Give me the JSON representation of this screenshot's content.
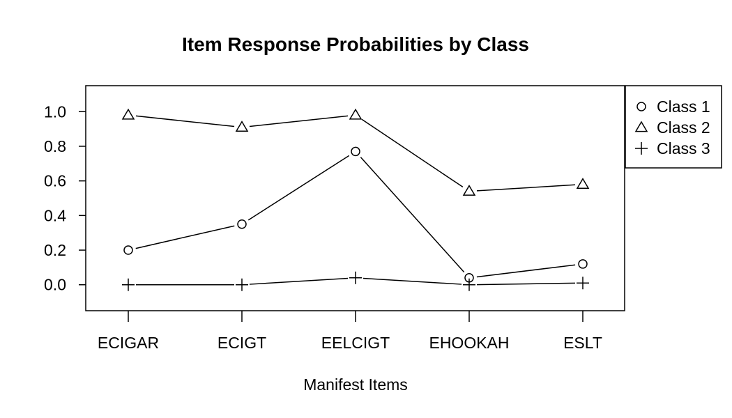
{
  "chart_data": {
    "type": "line",
    "title": "Item Response Probabilities by Class",
    "xlabel": "Manifest Items",
    "ylabel": "",
    "categories": [
      "ECIGAR",
      "ECIGT",
      "EELCIGT",
      "EHOOKAH",
      "ESLT"
    ],
    "ylim": [
      -0.15,
      1.15
    ],
    "yticks": [
      0.0,
      0.2,
      0.4,
      0.6,
      0.8,
      1.0
    ],
    "ytick_labels": [
      "0.0",
      "0.2",
      "0.4",
      "0.6",
      "0.8",
      "1.0"
    ],
    "grid": false,
    "legend_position": "top-right",
    "series": [
      {
        "name": "Class 1",
        "marker": "circle",
        "values": [
          0.2,
          0.35,
          0.77,
          0.04,
          0.12
        ]
      },
      {
        "name": "Class 2",
        "marker": "triangle",
        "values": [
          0.98,
          0.91,
          0.98,
          0.54,
          0.58
        ]
      },
      {
        "name": "Class 3",
        "marker": "plus",
        "values": [
          0.0,
          0.0,
          0.04,
          0.0,
          0.01
        ]
      }
    ],
    "colors": {
      "line": "#000000",
      "background": "#ffffff"
    }
  }
}
